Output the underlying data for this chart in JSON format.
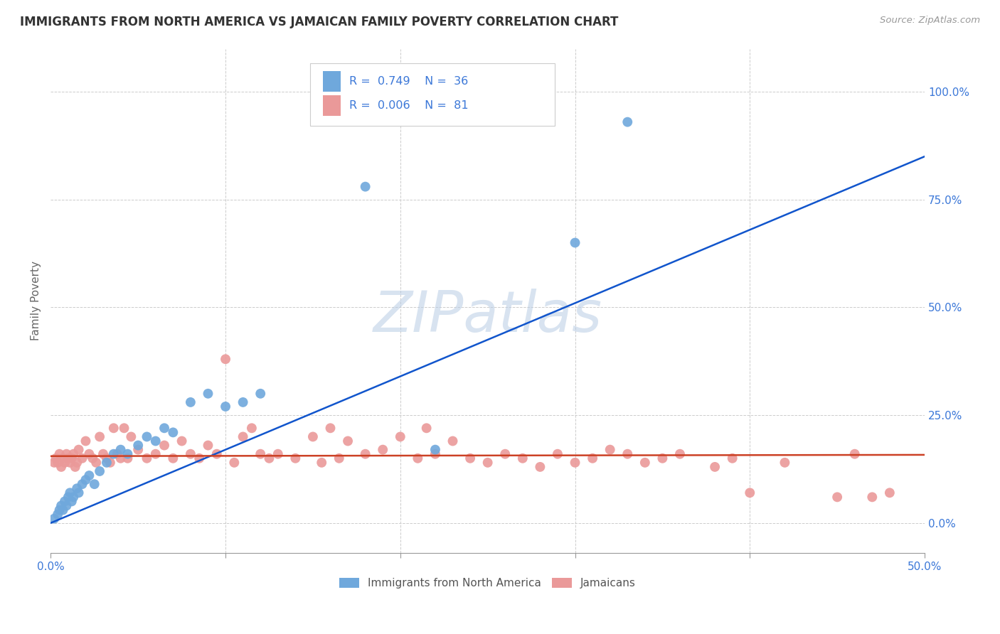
{
  "title": "IMMIGRANTS FROM NORTH AMERICA VS JAMAICAN FAMILY POVERTY CORRELATION CHART",
  "source": "Source: ZipAtlas.com",
  "ylabel": "Family Poverty",
  "ytick_values": [
    0.0,
    0.25,
    0.5,
    0.75,
    1.0
  ],
  "ytick_labels_right": [
    "0.0%",
    "25.0%",
    "50.0%",
    "75.0%",
    "100.0%"
  ],
  "xlim": [
    0.0,
    0.5
  ],
  "ylim": [
    -0.07,
    1.1
  ],
  "legend_blue_r": "0.749",
  "legend_blue_n": "36",
  "legend_pink_r": "0.006",
  "legend_pink_n": "81",
  "legend_label_blue": "Immigrants from North America",
  "legend_label_pink": "Jamaicans",
  "blue_color": "#6fa8dc",
  "blue_line_color": "#1155cc",
  "pink_color": "#ea9999",
  "pink_line_color": "#cc4125",
  "text_color_r": "#3c78d8",
  "watermark_text": "ZIPatlas",
  "blue_line_x": [
    0.0,
    0.5
  ],
  "blue_line_y": [
    0.0,
    0.85
  ],
  "pink_line_x": [
    0.0,
    0.5
  ],
  "pink_line_y": [
    0.155,
    0.158
  ],
  "blue_points": [
    [
      0.002,
      0.01
    ],
    [
      0.004,
      0.02
    ],
    [
      0.005,
      0.03
    ],
    [
      0.006,
      0.04
    ],
    [
      0.007,
      0.03
    ],
    [
      0.008,
      0.05
    ],
    [
      0.009,
      0.04
    ],
    [
      0.01,
      0.06
    ],
    [
      0.011,
      0.07
    ],
    [
      0.012,
      0.05
    ],
    [
      0.013,
      0.06
    ],
    [
      0.015,
      0.08
    ],
    [
      0.016,
      0.07
    ],
    [
      0.018,
      0.09
    ],
    [
      0.02,
      0.1
    ],
    [
      0.022,
      0.11
    ],
    [
      0.025,
      0.09
    ],
    [
      0.028,
      0.12
    ],
    [
      0.032,
      0.14
    ],
    [
      0.036,
      0.16
    ],
    [
      0.04,
      0.17
    ],
    [
      0.044,
      0.16
    ],
    [
      0.05,
      0.18
    ],
    [
      0.055,
      0.2
    ],
    [
      0.06,
      0.19
    ],
    [
      0.065,
      0.22
    ],
    [
      0.07,
      0.21
    ],
    [
      0.08,
      0.28
    ],
    [
      0.09,
      0.3
    ],
    [
      0.1,
      0.27
    ],
    [
      0.11,
      0.28
    ],
    [
      0.12,
      0.3
    ],
    [
      0.18,
      0.78
    ],
    [
      0.22,
      0.17
    ],
    [
      0.3,
      0.65
    ],
    [
      0.33,
      0.93
    ]
  ],
  "pink_points": [
    [
      0.002,
      0.14
    ],
    [
      0.003,
      0.15
    ],
    [
      0.004,
      0.14
    ],
    [
      0.005,
      0.16
    ],
    [
      0.006,
      0.13
    ],
    [
      0.007,
      0.15
    ],
    [
      0.008,
      0.14
    ],
    [
      0.009,
      0.16
    ],
    [
      0.01,
      0.15
    ],
    [
      0.011,
      0.14
    ],
    [
      0.012,
      0.15
    ],
    [
      0.013,
      0.16
    ],
    [
      0.014,
      0.13
    ],
    [
      0.015,
      0.14
    ],
    [
      0.016,
      0.17
    ],
    [
      0.018,
      0.15
    ],
    [
      0.02,
      0.19
    ],
    [
      0.022,
      0.16
    ],
    [
      0.024,
      0.15
    ],
    [
      0.026,
      0.14
    ],
    [
      0.028,
      0.2
    ],
    [
      0.03,
      0.16
    ],
    [
      0.032,
      0.15
    ],
    [
      0.034,
      0.14
    ],
    [
      0.036,
      0.22
    ],
    [
      0.038,
      0.16
    ],
    [
      0.04,
      0.15
    ],
    [
      0.042,
      0.22
    ],
    [
      0.044,
      0.15
    ],
    [
      0.046,
      0.2
    ],
    [
      0.05,
      0.17
    ],
    [
      0.055,
      0.15
    ],
    [
      0.06,
      0.16
    ],
    [
      0.065,
      0.18
    ],
    [
      0.07,
      0.15
    ],
    [
      0.075,
      0.19
    ],
    [
      0.08,
      0.16
    ],
    [
      0.085,
      0.15
    ],
    [
      0.09,
      0.18
    ],
    [
      0.095,
      0.16
    ],
    [
      0.1,
      0.38
    ],
    [
      0.105,
      0.14
    ],
    [
      0.11,
      0.2
    ],
    [
      0.115,
      0.22
    ],
    [
      0.12,
      0.16
    ],
    [
      0.125,
      0.15
    ],
    [
      0.13,
      0.16
    ],
    [
      0.14,
      0.15
    ],
    [
      0.15,
      0.2
    ],
    [
      0.155,
      0.14
    ],
    [
      0.16,
      0.22
    ],
    [
      0.165,
      0.15
    ],
    [
      0.17,
      0.19
    ],
    [
      0.18,
      0.16
    ],
    [
      0.19,
      0.17
    ],
    [
      0.2,
      0.2
    ],
    [
      0.21,
      0.15
    ],
    [
      0.215,
      0.22
    ],
    [
      0.22,
      0.16
    ],
    [
      0.23,
      0.19
    ],
    [
      0.24,
      0.15
    ],
    [
      0.25,
      0.14
    ],
    [
      0.26,
      0.16
    ],
    [
      0.27,
      0.15
    ],
    [
      0.28,
      0.13
    ],
    [
      0.29,
      0.16
    ],
    [
      0.3,
      0.14
    ],
    [
      0.31,
      0.15
    ],
    [
      0.32,
      0.17
    ],
    [
      0.33,
      0.16
    ],
    [
      0.34,
      0.14
    ],
    [
      0.35,
      0.15
    ],
    [
      0.36,
      0.16
    ],
    [
      0.38,
      0.13
    ],
    [
      0.39,
      0.15
    ],
    [
      0.4,
      0.07
    ],
    [
      0.42,
      0.14
    ],
    [
      0.45,
      0.06
    ],
    [
      0.46,
      0.16
    ],
    [
      0.47,
      0.06
    ],
    [
      0.48,
      0.07
    ]
  ]
}
